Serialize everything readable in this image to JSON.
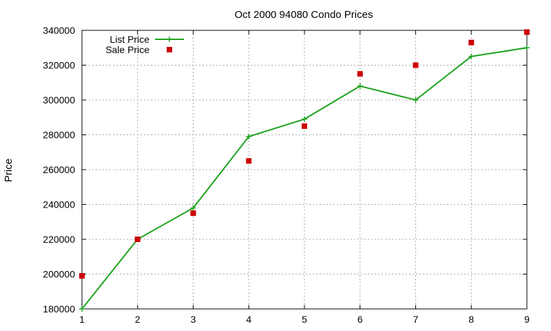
{
  "chart_data": {
    "type": "line",
    "title": "Oct 2000 94080 Condo Prices",
    "xlabel": "",
    "ylabel": "Price",
    "xlim": [
      1,
      9
    ],
    "ylim": [
      180000,
      340000
    ],
    "x_ticks": [
      "1",
      "2",
      "3",
      "4",
      "5",
      "6",
      "7",
      "8",
      "9"
    ],
    "y_ticks": [
      "180000",
      "200000",
      "220000",
      "240000",
      "260000",
      "280000",
      "300000",
      "320000",
      "340000"
    ],
    "grid": true,
    "legend_position": "top-left",
    "series": [
      {
        "name": "List Price",
        "style": "line-with-plus-markers",
        "color": "#1fa31f",
        "x": [
          1,
          2,
          3,
          4,
          5,
          6,
          7,
          8,
          9
        ],
        "y": [
          180000,
          220000,
          238000,
          279000,
          289000,
          308000,
          300000,
          325000,
          330000
        ]
      },
      {
        "name": "Sale Price",
        "style": "square-markers",
        "color": "#cc0000",
        "x": [
          1,
          2,
          3,
          4,
          5,
          6,
          7,
          8,
          9
        ],
        "y": [
          199000,
          220000,
          235000,
          265000,
          285000,
          315000,
          320000,
          333000,
          339000
        ]
      }
    ]
  }
}
